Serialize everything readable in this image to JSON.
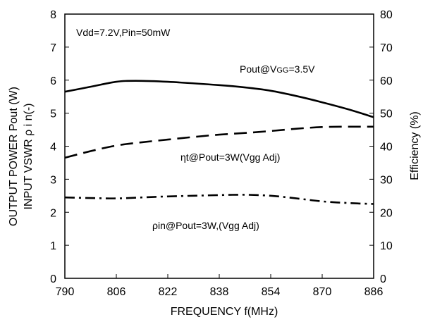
{
  "chart_data": {
    "type": "line",
    "xlabel": "FREQUENCY f(MHz)",
    "ylabel_left_line1": "OUTPUT POWER Pout (W)",
    "ylabel_left_line2": "INPUT VSWR ρ i n(-)",
    "ylabel_right": "Efficiency (%)",
    "xlim": [
      790,
      886
    ],
    "ylim_left": [
      0,
      8
    ],
    "ylim_right": [
      0,
      80
    ],
    "x_ticks": [
      790,
      806,
      822,
      838,
      854,
      870,
      886
    ],
    "y_ticks_left": [
      0,
      1,
      2,
      3,
      4,
      5,
      6,
      7,
      8
    ],
    "y_ticks_right": [
      0,
      10,
      20,
      30,
      40,
      50,
      60,
      70,
      80
    ],
    "grid": false,
    "condition_text": "Vdd=7.2V,Pin=50mW",
    "annotations": {
      "pout_main": "Pout@V",
      "pout_sub": "GG",
      "pout_tail": "=3.5V",
      "eff": "ηt@Pout=3W(Vgg Adj)",
      "vswr": "ρin@Pout=3W,(Vgg  Adj)"
    },
    "series": [
      {
        "axis": "left",
        "style": "solid",
        "x": [
          790,
          798,
          806,
          812,
          822,
          838,
          846,
          854,
          862,
          870,
          878,
          886
        ],
        "values": [
          5.65,
          5.8,
          5.95,
          5.98,
          5.95,
          5.85,
          5.78,
          5.68,
          5.52,
          5.33,
          5.12,
          4.88
        ]
      },
      {
        "axis": "right",
        "style": "dashed",
        "x": [
          790,
          798,
          806,
          814,
          822,
          830,
          838,
          846,
          854,
          862,
          870,
          878,
          886
        ],
        "values": [
          36.5,
          38.5,
          40.2,
          41.2,
          42,
          42.8,
          43.5,
          44,
          44.6,
          45.3,
          45.8,
          45.9,
          45.9
        ]
      },
      {
        "axis": "left",
        "style": "dashdot",
        "x": [
          790,
          798,
          806,
          814,
          822,
          830,
          838,
          846,
          854,
          862,
          870,
          878,
          886
        ],
        "values": [
          2.45,
          2.43,
          2.42,
          2.45,
          2.48,
          2.5,
          2.52,
          2.53,
          2.5,
          2.42,
          2.33,
          2.28,
          2.25
        ]
      }
    ]
  }
}
